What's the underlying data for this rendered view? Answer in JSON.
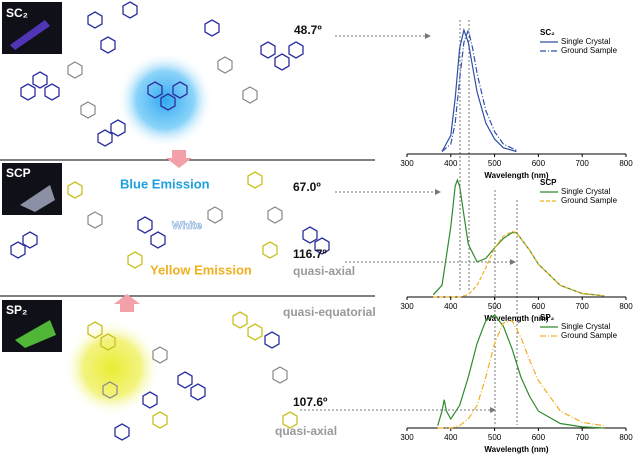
{
  "labels": {
    "sc2": "SC₂",
    "scp": "SCP",
    "sp2": "SP₂",
    "angle1": "48.7º",
    "blue": "Blue Emission",
    "white": "White",
    "yellow": "Yellow Emission",
    "angle2": "67.0º",
    "angle3": "116.7º",
    "qa1": "quasi-axial",
    "qe": "quasi-equatorial",
    "angle4": "107.6º",
    "qa2": "quasi-axial"
  },
  "chart_data": [
    {
      "type": "line",
      "title": "SC₂",
      "xlabel": "Wavelength (nm)",
      "xlim": [
        300,
        800
      ],
      "xticks": [
        300,
        400,
        500,
        600,
        700,
        800
      ],
      "ylim": [
        0,
        1
      ],
      "x": [
        380,
        400,
        410,
        420,
        430,
        440,
        450,
        460,
        480,
        500,
        520,
        550
      ],
      "series": [
        {
          "name": "Single Crystal",
          "color": "#2f4fa8",
          "style": "solid",
          "values": [
            0.02,
            0.15,
            0.45,
            0.85,
            1.0,
            0.9,
            0.7,
            0.5,
            0.25,
            0.12,
            0.05,
            0.02
          ]
        },
        {
          "name": "Ground Sample",
          "color": "#2f4fa8",
          "style": "dashdot",
          "values": [
            0.02,
            0.08,
            0.25,
            0.6,
            0.9,
            1.0,
            0.85,
            0.65,
            0.35,
            0.18,
            0.08,
            0.03
          ]
        }
      ]
    },
    {
      "type": "line",
      "title": "SCP",
      "xlabel": "Wavelength (nm)",
      "xlim": [
        300,
        800
      ],
      "xticks": [
        300,
        400,
        500,
        600,
        700,
        800
      ],
      "ylim": [
        0,
        1
      ],
      "x": [
        360,
        380,
        400,
        410,
        415,
        420,
        430,
        440,
        460,
        480,
        500,
        520,
        540,
        550,
        560,
        580,
        600,
        650,
        700,
        750
      ],
      "series": [
        {
          "name": "Single Crystal",
          "color": "#2e8b2e",
          "style": "solid",
          "values": [
            0.02,
            0.1,
            0.6,
            0.95,
            1.0,
            0.95,
            0.7,
            0.45,
            0.3,
            0.33,
            0.42,
            0.5,
            0.55,
            0.55,
            0.5,
            0.4,
            0.28,
            0.1,
            0.03,
            0.01
          ]
        },
        {
          "name": "Ground Sample",
          "color": "#f0b020",
          "style": "dashed",
          "values": [
            0,
            0,
            0,
            0,
            0,
            0,
            0.01,
            0.02,
            0.1,
            0.25,
            0.42,
            0.52,
            0.56,
            0.55,
            0.5,
            0.4,
            0.28,
            0.1,
            0.03,
            0.01
          ]
        }
      ]
    },
    {
      "type": "line",
      "title": "SP₂",
      "xlabel": "Wavelength (nm)",
      "xlim": [
        300,
        800
      ],
      "xticks": [
        300,
        400,
        500,
        600,
        700,
        800
      ],
      "ylim": [
        0,
        1
      ],
      "x": [
        370,
        380,
        385,
        390,
        400,
        420,
        440,
        460,
        480,
        500,
        520,
        540,
        560,
        580,
        600,
        650,
        700,
        750
      ],
      "series": [
        {
          "name": "Single Crystal",
          "color": "#2e8b2e",
          "style": "solid",
          "values": [
            0.02,
            0.15,
            0.25,
            0.15,
            0.08,
            0.2,
            0.45,
            0.75,
            0.95,
            1.0,
            0.9,
            0.7,
            0.45,
            0.28,
            0.15,
            0.04,
            0.01,
            0
          ]
        },
        {
          "name": "Ground Sample",
          "color": "#f0b020",
          "style": "dashdot",
          "values": [
            0,
            0,
            0,
            0,
            0,
            0.02,
            0.08,
            0.2,
            0.45,
            0.75,
            0.93,
            0.95,
            0.8,
            0.6,
            0.42,
            0.15,
            0.05,
            0.02
          ]
        }
      ]
    }
  ]
}
